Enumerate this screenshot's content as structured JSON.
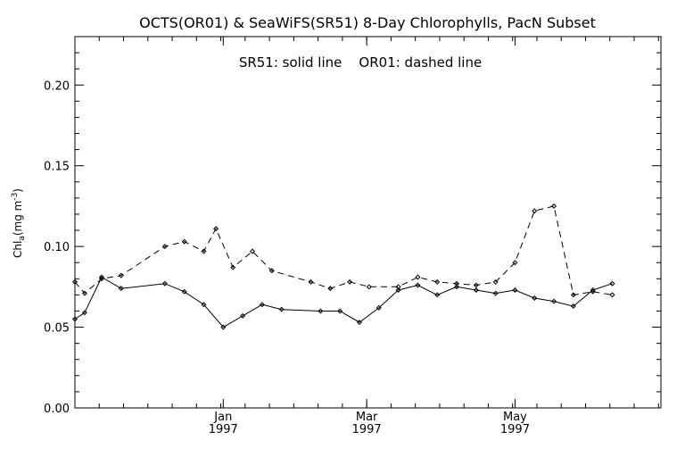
{
  "chart_data": {
    "type": "line",
    "title": "OCTS(OR01) & SeaWiFS(SR51) 8-Day Chlorophylls, PacN Subset",
    "annotation": "SR51: solid line    OR01: dashed line",
    "ylabel": "Chl",
    "ylabel_sub": "a",
    "ylabel_units": "(mg m",
    "ylabel_sup": "-3",
    "ylabel_close": ")",
    "ylim": [
      0.0,
      0.23
    ],
    "yticks": [
      0.0,
      0.05,
      0.1,
      0.15,
      0.2
    ],
    "ytick_labels": [
      "0.00",
      "0.05",
      "0.10",
      "0.15",
      "0.20"
    ],
    "xlim": [
      "1996-11-01",
      "1997-06-30"
    ],
    "xticks": [
      {
        "date": "1997-01-01",
        "month": "Jan",
        "year": "1997"
      },
      {
        "date": "1997-03-01",
        "month": "Mar",
        "year": "1997"
      },
      {
        "date": "1997-05-01",
        "month": "May",
        "year": "1997"
      }
    ],
    "grid": false,
    "series": [
      {
        "name": "SR51",
        "style": "solid",
        "color": "#000000",
        "points": [
          [
            "1996-11-01",
            0.055
          ],
          [
            "1996-11-05",
            0.059
          ],
          [
            "1996-11-12",
            0.081
          ],
          [
            "1996-11-20",
            0.074
          ],
          [
            "1996-12-08",
            0.077
          ],
          [
            "1996-12-16",
            0.072
          ],
          [
            "1996-12-24",
            0.064
          ],
          [
            "1997-01-01",
            0.05
          ],
          [
            "1997-01-09",
            0.057
          ],
          [
            "1997-01-17",
            0.064
          ],
          [
            "1997-01-25",
            0.061
          ],
          [
            "1997-02-10",
            0.06
          ],
          [
            "1997-02-18",
            0.06
          ],
          [
            "1997-02-26",
            0.053
          ],
          [
            "1997-03-06",
            0.062
          ],
          [
            "1997-03-14",
            0.073
          ],
          [
            "1997-03-22",
            0.076
          ],
          [
            "1997-03-30",
            0.07
          ],
          [
            "1997-04-07",
            0.075
          ],
          [
            "1997-04-15",
            0.073
          ],
          [
            "1997-04-23",
            0.071
          ],
          [
            "1997-05-01",
            0.073
          ],
          [
            "1997-05-09",
            0.068
          ],
          [
            "1997-05-17",
            0.066
          ],
          [
            "1997-05-25",
            0.063
          ],
          [
            "1997-06-02",
            0.073
          ],
          [
            "1997-06-10",
            0.077
          ]
        ]
      },
      {
        "name": "OR01",
        "style": "dashed",
        "color": "#000000",
        "points": [
          [
            "1996-11-01",
            0.078
          ],
          [
            "1996-11-05",
            0.071
          ],
          [
            "1996-11-12",
            0.08
          ],
          [
            "1996-11-20",
            0.082
          ],
          [
            "1996-12-08",
            0.1
          ],
          [
            "1996-12-16",
            0.103
          ],
          [
            "1996-12-24",
            0.097
          ],
          [
            "1996-12-29",
            0.111
          ],
          [
            "1997-01-05",
            0.087
          ],
          [
            "1997-01-13",
            0.097
          ],
          [
            "1997-01-21",
            0.085
          ],
          [
            "1997-02-06",
            0.078
          ],
          [
            "1997-02-14",
            0.074
          ],
          [
            "1997-02-22",
            0.078
          ],
          [
            "1997-03-02",
            0.075
          ],
          [
            "1997-03-14",
            0.075
          ],
          [
            "1997-03-22",
            0.081
          ],
          [
            "1997-03-30",
            0.078
          ],
          [
            "1997-04-07",
            0.077
          ],
          [
            "1997-04-15",
            0.076
          ],
          [
            "1997-04-23",
            0.078
          ],
          [
            "1997-05-01",
            0.09
          ],
          [
            "1997-05-09",
            0.122
          ],
          [
            "1997-05-17",
            0.125
          ],
          [
            "1997-05-25",
            0.07
          ],
          [
            "1997-06-02",
            0.072
          ],
          [
            "1997-06-10",
            0.07
          ]
        ]
      }
    ]
  }
}
